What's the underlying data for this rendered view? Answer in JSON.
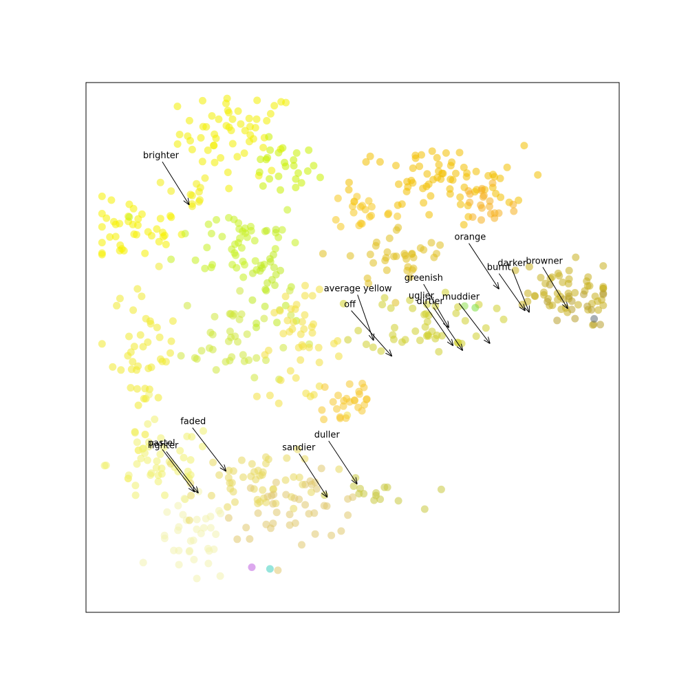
{
  "chart_data": {
    "type": "scatter",
    "title": "",
    "xlabel": "",
    "ylabel": "",
    "axes_visible": false,
    "grid": false,
    "xlim": [
      0,
      100
    ],
    "ylim": [
      0,
      100
    ],
    "point_alpha": 0.55,
    "clusters": [
      {
        "name": "top",
        "color": "#f2ee00",
        "cx": 28.5,
        "cy": 90.5,
        "sx": 5.5,
        "sy": 4.0,
        "n": 55
      },
      {
        "name": "top-lime",
        "color": "#c8f000",
        "cx": 36.5,
        "cy": 83.5,
        "sx": 3.5,
        "sy": 2.5,
        "n": 25
      },
      {
        "name": "left",
        "color": "#f5f000",
        "cx": 8.5,
        "cy": 72.0,
        "sx": 5.0,
        "sy": 3.0,
        "n": 40
      },
      {
        "name": "brighter-group",
        "color": "#f2ec10",
        "cx": 19.0,
        "cy": 79.0,
        "sx": 2.2,
        "sy": 2.0,
        "n": 12
      },
      {
        "name": "middle-lime",
        "color": "#c6f020",
        "cx": 29.0,
        "cy": 70.0,
        "sx": 6.0,
        "sy": 4.0,
        "n": 45
      },
      {
        "name": "center-stem",
        "color": "#c0ea20",
        "cx": 34.0,
        "cy": 63.0,
        "sx": 2.0,
        "sy": 4.0,
        "n": 25
      },
      {
        "name": "green-lower",
        "color": "#cfe840",
        "cx": 28.0,
        "cy": 52.0,
        "sx": 5.0,
        "sy": 5.0,
        "n": 40
      },
      {
        "name": "left-mid",
        "color": "#f0ea30",
        "cx": 11.0,
        "cy": 49.0,
        "sx": 3.0,
        "sy": 7.0,
        "n": 45
      },
      {
        "name": "center-yellow",
        "color": "#f2e040",
        "cx": 40.0,
        "cy": 50.0,
        "sx": 4.0,
        "sy": 5.0,
        "n": 45
      },
      {
        "name": "orange-mid",
        "color": "#f5c830",
        "cx": 49.0,
        "cy": 40.0,
        "sx": 3.0,
        "sy": 3.0,
        "n": 25
      },
      {
        "name": "lower-left-pale",
        "color": "#f0f070",
        "cx": 14.0,
        "cy": 28.0,
        "sx": 5.0,
        "sy": 4.0,
        "n": 45
      },
      {
        "name": "bottom-pale",
        "color": "#f2f2b0",
        "cx": 20.0,
        "cy": 13.0,
        "sx": 3.5,
        "sy": 4.0,
        "n": 35
      },
      {
        "name": "lower-middle",
        "color": "#e8d860",
        "cx": 33.0,
        "cy": 25.0,
        "sx": 6.0,
        "sy": 3.0,
        "n": 50
      },
      {
        "name": "lower-sand",
        "color": "#e0c870",
        "cx": 40.0,
        "cy": 20.0,
        "sx": 7.0,
        "sy": 3.0,
        "n": 40
      },
      {
        "name": "lower-olive",
        "color": "#c8c840",
        "cx": 54.0,
        "cy": 22.0,
        "sx": 4.0,
        "sy": 1.5,
        "n": 15
      },
      {
        "name": "right-top",
        "color": "#f2c000",
        "cx": 66.0,
        "cy": 81.0,
        "sx": 8.0,
        "sy": 3.5,
        "n": 70
      },
      {
        "name": "right-orange",
        "color": "#f5b020",
        "cx": 75.0,
        "cy": 77.0,
        "sx": 3.0,
        "sy": 3.0,
        "n": 20
      },
      {
        "name": "right-left-cluster",
        "color": "#f5c820",
        "cx": 52.0,
        "cy": 76.0,
        "sx": 3.0,
        "sy": 2.0,
        "n": 20
      },
      {
        "name": "right-mid",
        "color": "#e0c020",
        "cx": 59.0,
        "cy": 67.0,
        "sx": 5.0,
        "sy": 3.0,
        "n": 35
      },
      {
        "name": "right-lower",
        "color": "#d0d030",
        "cx": 64.0,
        "cy": 55.0,
        "sx": 6.0,
        "sy": 3.0,
        "n": 45
      },
      {
        "name": "far-right",
        "color": "#c8b020",
        "cx": 88.0,
        "cy": 60.0,
        "sx": 6.0,
        "sy": 3.0,
        "n": 50
      },
      {
        "name": "far-right-brown",
        "color": "#b8a030",
        "cx": 92.0,
        "cy": 58.0,
        "sx": 3.0,
        "sy": 2.0,
        "n": 15
      }
    ],
    "points": [
      {
        "x": 31.1,
        "y": 8.5,
        "color": "#c060e0"
      },
      {
        "x": 34.5,
        "y": 8.2,
        "color": "#40d0c0"
      },
      {
        "x": 95.3,
        "y": 55.4,
        "color": "#606e78"
      },
      {
        "x": 73.0,
        "y": 57.5,
        "color": "#80e040"
      },
      {
        "x": 71.0,
        "y": 57.8,
        "color": "#90e050"
      }
    ],
    "annotations": [
      {
        "label": "brighter",
        "x": 19.3,
        "y": 77.0,
        "tx": 10.7,
        "ty": 85.7
      },
      {
        "label": "orange",
        "x": 77.4,
        "y": 61.1,
        "tx": 69.1,
        "ty": 70.3
      },
      {
        "label": "darker",
        "x": 83.1,
        "y": 56.7,
        "tx": 77.2,
        "ty": 65.4
      },
      {
        "name_hint": "",
        "label": "burnt",
        "x": 82.3,
        "y": 57.0,
        "tx": 75.2,
        "ty": 64.6
      },
      {
        "label": "browner",
        "x": 90.3,
        "y": 57.4,
        "tx": 82.5,
        "ty": 65.8
      },
      {
        "label": "greenish",
        "x": 68.0,
        "y": 53.8,
        "tx": 59.7,
        "ty": 62.6
      },
      {
        "label": "average yellow",
        "x": 53.9,
        "y": 51.4,
        "tx": 44.6,
        "ty": 60.6
      },
      {
        "label": "uglier",
        "x": 68.8,
        "y": 50.4,
        "tx": 60.5,
        "ty": 59.2
      },
      {
        "label": "muddier",
        "x": 75.7,
        "y": 50.8,
        "tx": 66.8,
        "ty": 59.0
      },
      {
        "label": "dirtier",
        "x": 70.6,
        "y": 49.5,
        "tx": 62.0,
        "ty": 58.2
      },
      {
        "label": "off",
        "x": 57.3,
        "y": 48.4,
        "tx": 48.4,
        "ty": 57.6
      },
      {
        "label": "faded",
        "x": 26.2,
        "y": 26.7,
        "tx": 17.7,
        "ty": 35.5
      },
      {
        "label": "duller",
        "x": 50.8,
        "y": 24.3,
        "tx": 42.8,
        "ty": 33.0
      },
      {
        "label": "sandier",
        "x": 45.2,
        "y": 21.8,
        "tx": 36.8,
        "ty": 30.6
      },
      {
        "label": "pastel",
        "x": 20.3,
        "y": 22.8,
        "tx": 11.6,
        "ty": 31.4
      },
      {
        "label": "lighter",
        "x": 21.0,
        "y": 22.6,
        "tx": 11.9,
        "ty": 31.0
      }
    ]
  }
}
